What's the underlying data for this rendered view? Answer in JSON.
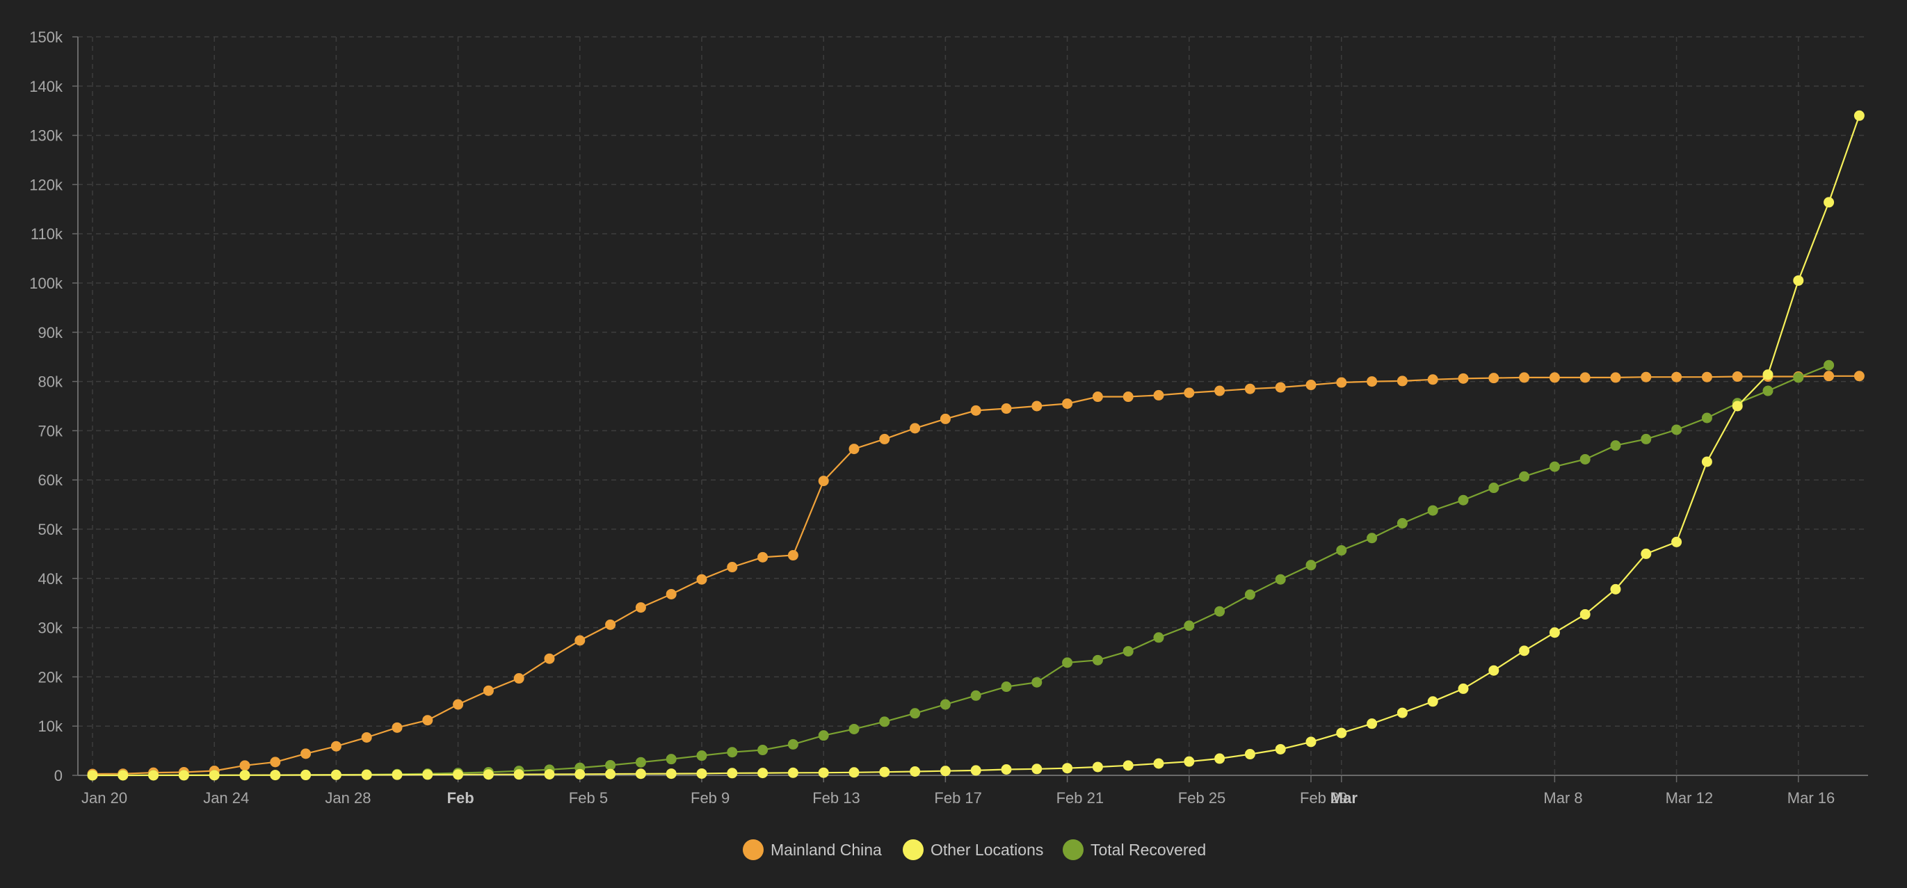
{
  "chart_data": {
    "type": "line",
    "title": "",
    "xlabel": "",
    "ylabel": "",
    "ylim": [
      0,
      150000
    ],
    "y_ticks": [
      "0",
      "10k",
      "20k",
      "30k",
      "40k",
      "50k",
      "60k",
      "70k",
      "80k",
      "90k",
      "100k",
      "110k",
      "120k",
      "130k",
      "140k",
      "150k"
    ],
    "x_start": "2020-01-20",
    "x_ticks": [
      {
        "label": "Jan 20",
        "day": 0,
        "bold": false
      },
      {
        "label": "Jan 24",
        "day": 4,
        "bold": false
      },
      {
        "label": "Jan 28",
        "day": 8,
        "bold": false
      },
      {
        "label": "Feb",
        "day": 12,
        "bold": true
      },
      {
        "label": "Feb 5",
        "day": 16,
        "bold": false
      },
      {
        "label": "Feb 9",
        "day": 20,
        "bold": false
      },
      {
        "label": "Feb 13",
        "day": 24,
        "bold": false
      },
      {
        "label": "Feb 17",
        "day": 28,
        "bold": false
      },
      {
        "label": "Feb 21",
        "day": 32,
        "bold": false
      },
      {
        "label": "Feb 25",
        "day": 36,
        "bold": false
      },
      {
        "label": "Feb 29",
        "day": 40,
        "bold": false
      },
      {
        "label": "Mar",
        "day": 41,
        "bold": true
      },
      {
        "label": "Mar 8",
        "day": 48,
        "bold": false
      },
      {
        "label": "Mar 12",
        "day": 52,
        "bold": false
      },
      {
        "label": "Mar 16",
        "day": 56,
        "bold": false
      }
    ],
    "grid": true,
    "legend_position": "bottom-center",
    "series": [
      {
        "name": "Mainland China",
        "color": "#f0a23a",
        "values": [
          278,
          326,
          547,
          639,
          916,
          2000,
          2700,
          4400,
          5900,
          7700,
          9700,
          11200,
          14400,
          17200,
          19700,
          23700,
          27400,
          30600,
          34100,
          36800,
          39800,
          42300,
          44300,
          44700,
          59800,
          66300,
          68300,
          70500,
          72400,
          74100,
          74500,
          75000,
          75500,
          76900,
          76900,
          77200,
          77700,
          78100,
          78500,
          78800,
          79300,
          79800,
          80000,
          80100,
          80400,
          80600,
          80700,
          80800,
          80800,
          80800,
          80800,
          80900,
          80900,
          80900,
          81000,
          81000,
          81000,
          81100,
          81100
        ]
      },
      {
        "name": "Other Locations",
        "color": "#f6f05a",
        "values": [
          4,
          6,
          8,
          14,
          25,
          40,
          57,
          64,
          87,
          105,
          118,
          153,
          173,
          183,
          188,
          212,
          227,
          265,
          317,
          343,
          361,
          457,
          476,
          523,
          538,
          595,
          685,
          780,
          896,
          999,
          1200,
          1300,
          1450,
          1700,
          2000,
          2400,
          2800,
          3400,
          4300,
          5300,
          6800,
          8600,
          10500,
          12700,
          15000,
          17600,
          21300,
          25300,
          29000,
          32700,
          37800,
          45000,
          47400,
          63700,
          75000,
          81400,
          100500,
          116400,
          134000
        ]
      },
      {
        "name": "Total Recovered",
        "color": "#7ba231",
        "values": [
          0,
          28,
          34,
          38,
          39,
          49,
          60,
          103,
          124,
          171,
          243,
          328,
          475,
          632,
          892,
          1153,
          1540,
          2050,
          2650,
          3300,
          4000,
          4700,
          5150,
          6300,
          8100,
          9400,
          10900,
          12600,
          14400,
          16200,
          18000,
          18900,
          22900,
          23400,
          25200,
          28000,
          30400,
          33300,
          36700,
          39800,
          42700,
          45700,
          48200,
          51200,
          53800,
          55900,
          58400,
          60700,
          62700,
          64200,
          67000,
          68300,
          70200,
          72600,
          75600,
          78100,
          80800,
          83300
        ]
      }
    ]
  }
}
